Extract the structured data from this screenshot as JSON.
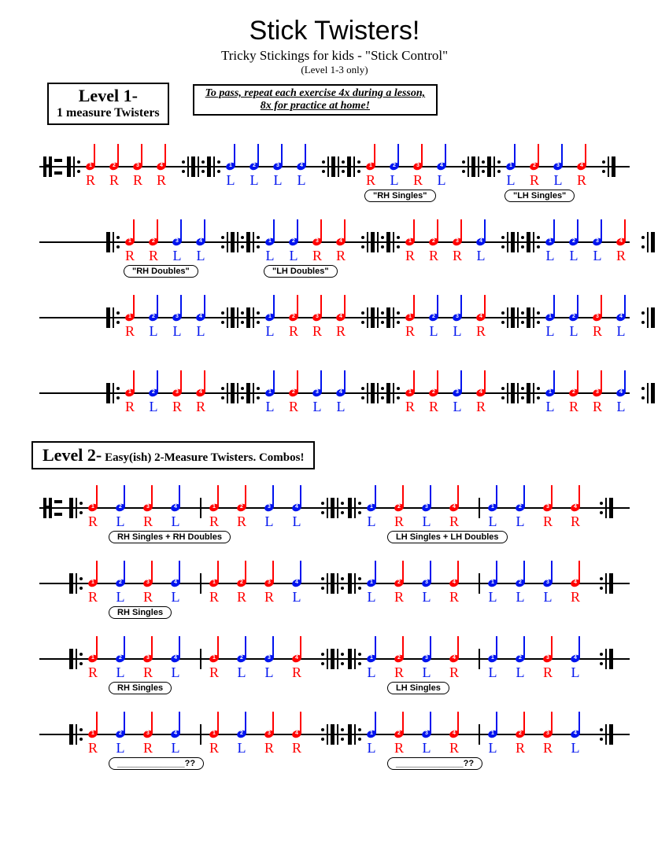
{
  "title": "Stick Twisters!",
  "subtitle": "Tricky Stickings for kids - \"Stick Control\"",
  "subsubtitle": "(Level 1-3 only)",
  "level1": {
    "heading": "Level 1-",
    "sub": "1 measure Twisters"
  },
  "pass_instruction": "To pass, repeat each exercise 4x during a lesson,\n8x for practice at home!",
  "level2": {
    "heading": "Level 2-",
    "sub": "Easy(ish) 2-Measure Twisters.  Combos!"
  },
  "colors": {
    "R": "#ff0000",
    "L": "#0014ee",
    "staff": "#000000",
    "bg": "#ffffff"
  },
  "level1_rows": [
    {
      "measures": [
        {
          "notes": [
            "R",
            "R",
            "R",
            "R"
          ]
        },
        {
          "notes": [
            "L",
            "L",
            "L",
            "L"
          ]
        },
        {
          "notes": [
            "R",
            "L",
            "R",
            "L"
          ],
          "label": "\"RH Singles\""
        },
        {
          "notes": [
            "L",
            "R",
            "L",
            "R"
          ],
          "label": "\"LH Singles\""
        }
      ]
    },
    {
      "measures": [
        {
          "notes": [
            "R",
            "R",
            "L",
            "L"
          ],
          "label": "\"RH Doubles\""
        },
        {
          "notes": [
            "L",
            "L",
            "R",
            "R"
          ],
          "label": "\"LH Doubles\""
        },
        {
          "notes": [
            "R",
            "R",
            "R",
            "L"
          ]
        },
        {
          "notes": [
            "L",
            "L",
            "L",
            "R"
          ]
        }
      ]
    },
    {
      "measures": [
        {
          "notes": [
            "R",
            "L",
            "L",
            "L"
          ]
        },
        {
          "notes": [
            "L",
            "R",
            "R",
            "R"
          ]
        },
        {
          "notes": [
            "R",
            "L",
            "L",
            "R"
          ]
        },
        {
          "notes": [
            "L",
            "L",
            "R",
            "L"
          ]
        }
      ]
    },
    {
      "measures": [
        {
          "notes": [
            "R",
            "L",
            "R",
            "R"
          ]
        },
        {
          "notes": [
            "L",
            "R",
            "L",
            "L"
          ]
        },
        {
          "notes": [
            "R",
            "R",
            "L",
            "R"
          ]
        },
        {
          "notes": [
            "L",
            "R",
            "R",
            "L"
          ]
        }
      ]
    }
  ],
  "level2_rows": [
    {
      "groups": [
        {
          "m": [
            [
              "R",
              "L",
              "R",
              "L"
            ],
            [
              "R",
              "R",
              "L",
              "L"
            ]
          ],
          "label": "RH Singles + RH Doubles"
        },
        {
          "m": [
            [
              "L",
              "R",
              "L",
              "R"
            ],
            [
              "L",
              "L",
              "R",
              "R"
            ]
          ],
          "label": "LH Singles + LH Doubles"
        }
      ]
    },
    {
      "groups": [
        {
          "m": [
            [
              "R",
              "L",
              "R",
              "L"
            ],
            [
              "R",
              "R",
              "R",
              "L"
            ]
          ],
          "label": "RH Singles"
        },
        {
          "m": [
            [
              "L",
              "R",
              "L",
              "R"
            ],
            [
              "L",
              "L",
              "L",
              "R"
            ]
          ]
        }
      ]
    },
    {
      "groups": [
        {
          "m": [
            [
              "R",
              "L",
              "R",
              "L"
            ],
            [
              "R",
              "L",
              "L",
              "R"
            ]
          ],
          "label": "RH Singles"
        },
        {
          "m": [
            [
              "L",
              "R",
              "L",
              "R"
            ],
            [
              "L",
              "L",
              "R",
              "L"
            ]
          ],
          "label": "LH Singles"
        }
      ]
    },
    {
      "groups": [
        {
          "m": [
            [
              "R",
              "L",
              "R",
              "L"
            ],
            [
              "R",
              "L",
              "R",
              "R"
            ]
          ],
          "label": "______________??"
        },
        {
          "m": [
            [
              "L",
              "R",
              "L",
              "R"
            ],
            [
              "L",
              "R",
              "R",
              "L"
            ]
          ],
          "label": "______________??"
        }
      ]
    }
  ]
}
